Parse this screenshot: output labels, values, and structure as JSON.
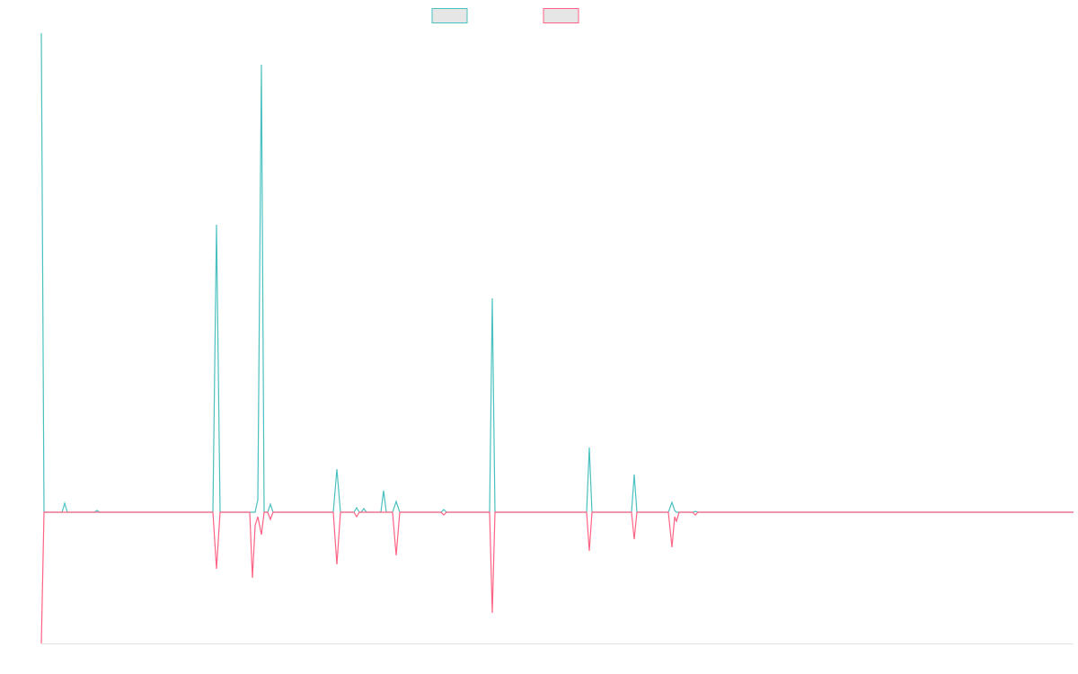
{
  "chart_data": {
    "type": "line",
    "x": [
      0,
      3,
      23,
      26,
      29,
      59,
      62,
      65,
      191,
      195,
      199,
      232,
      235,
      238,
      241,
      245,
      248,
      252,
      255,
      258,
      325,
      329,
      333,
      348,
      351,
      354,
      356,
      359,
      362,
      378,
      381,
      384,
      391,
      395,
      399,
      445,
      448,
      451,
      499,
      502,
      505,
      607,
      610,
      613,
      657,
      660,
      663,
      698,
      702,
      705,
      707,
      710,
      725,
      728,
      731,
      1149
    ],
    "series": [
      {
        "color": "#4bc0c0",
        "values": [
          533,
          0,
          0,
          10,
          0,
          0,
          2,
          0,
          0,
          320,
          0,
          0,
          0,
          0,
          14,
          498,
          0,
          0,
          9,
          0,
          0,
          48,
          0,
          0,
          5,
          0,
          0,
          4,
          0,
          0,
          24,
          0,
          0,
          12,
          0,
          0,
          3,
          0,
          0,
          238,
          0,
          0,
          72,
          0,
          0,
          42,
          0,
          0,
          11,
          2,
          0,
          0,
          0,
          1,
          0,
          0
        ]
      },
      {
        "color": "#ff6384",
        "values": [
          -146,
          0,
          0,
          0,
          0,
          0,
          0,
          0,
          0,
          -63,
          0,
          0,
          -73,
          -15,
          -5,
          -25,
          0,
          0,
          -8,
          0,
          0,
          -58,
          0,
          0,
          -5,
          0,
          0,
          0,
          0,
          0,
          0,
          0,
          0,
          -48,
          0,
          0,
          -3,
          0,
          0,
          -112,
          0,
          0,
          -43,
          0,
          0,
          -30,
          0,
          0,
          -39,
          -5,
          -10,
          0,
          0,
          -3,
          0,
          0
        ]
      }
    ],
    "xlim": [
      0,
      1149
    ],
    "ylim": [
      -146,
      533
    ],
    "grid": false,
    "legend": "top"
  }
}
